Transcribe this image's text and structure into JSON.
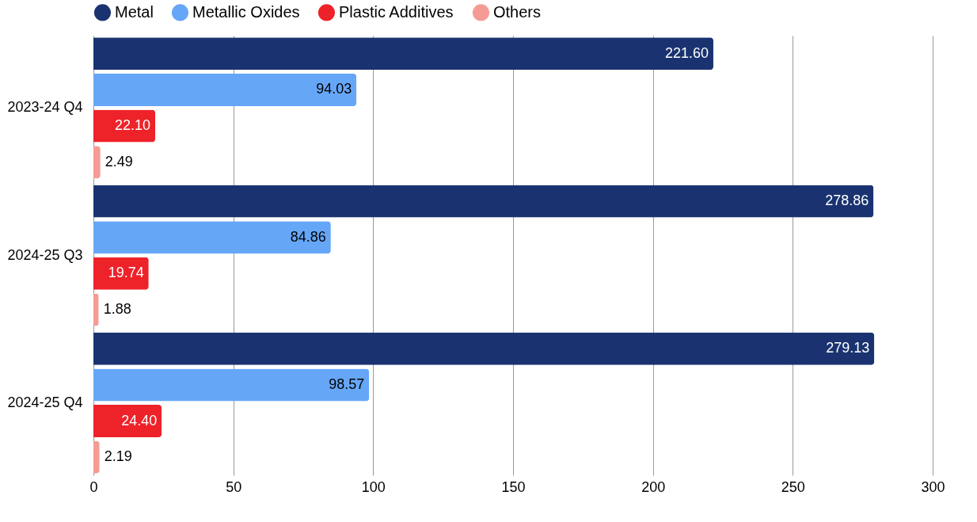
{
  "chart_data": {
    "type": "bar",
    "orientation": "horizontal",
    "categories": [
      "2023-24 Q4",
      "2024-25 Q3",
      "2024-25 Q4"
    ],
    "series": [
      {
        "name": "Metal",
        "color": "#1a3370",
        "values": [
          221.6,
          278.86,
          279.13
        ],
        "value_labels": [
          "221.60",
          "278.86",
          "279.13"
        ]
      },
      {
        "name": "Metallic Oxides",
        "color": "#66a6f7",
        "values": [
          94.03,
          84.86,
          98.57
        ],
        "value_labels": [
          "94.03",
          "84.86",
          "98.57"
        ]
      },
      {
        "name": "Plastic Additives",
        "color": "#ee2229",
        "values": [
          22.1,
          19.74,
          24.4
        ],
        "value_labels": [
          "22.10",
          "19.74",
          "24.40"
        ]
      },
      {
        "name": "Others",
        "color": "#f59b95",
        "values": [
          2.49,
          1.88,
          2.19
        ],
        "value_labels": [
          "2.49",
          "1.88",
          "2.19"
        ]
      }
    ],
    "xlim": [
      0,
      300
    ],
    "xticks": [
      0,
      50,
      100,
      150,
      200,
      250,
      300
    ],
    "grid": "x",
    "legend": "top"
  }
}
